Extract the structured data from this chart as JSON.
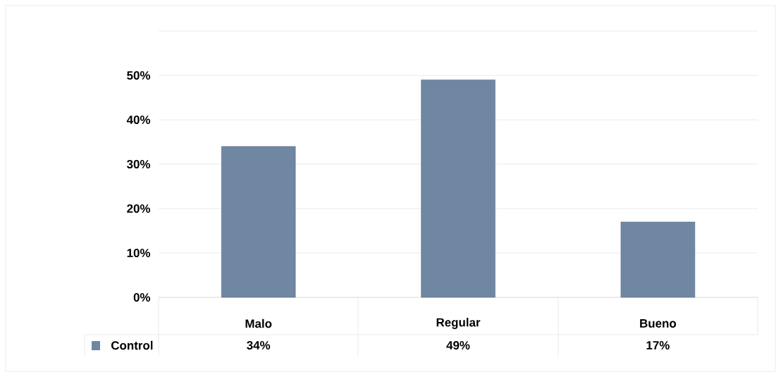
{
  "chart_data": {
    "type": "bar",
    "categories": [
      "Malo",
      "Regular",
      "Bueno"
    ],
    "series": [
      {
        "name": "Control",
        "color": "#6f87a3",
        "values": [
          34,
          49,
          17
        ]
      }
    ],
    "ylim": [
      0,
      60
    ],
    "yticks": [
      {
        "value": 0,
        "label": "0%"
      },
      {
        "value": 10,
        "label": "10%"
      },
      {
        "value": 20,
        "label": "20%"
      },
      {
        "value": 30,
        "label": "30%"
      },
      {
        "value": 40,
        "label": "40%"
      },
      {
        "value": 50,
        "label": "50%"
      },
      {
        "value": 60,
        "label": null
      }
    ],
    "value_labels": [
      "34%",
      "49%",
      "17%"
    ],
    "grid": "y",
    "legend": "bottom left"
  }
}
